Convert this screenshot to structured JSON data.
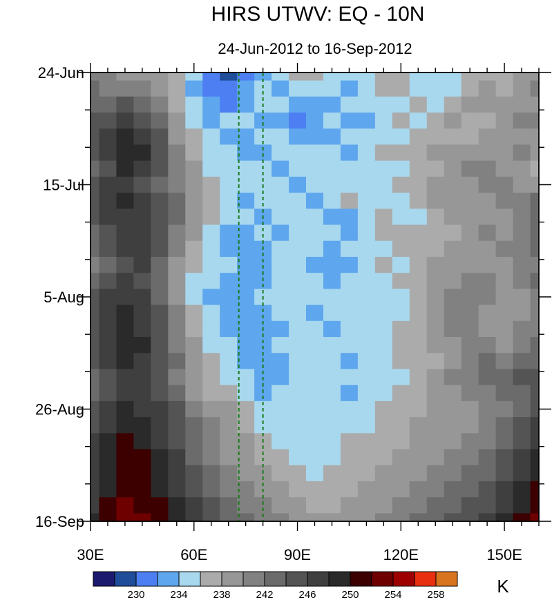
{
  "chart_data": {
    "type": "heatmap",
    "title": "HIRS UTWV: EQ - 10N",
    "subtitle": "24-Jun-2012 to 16-Sep-2012",
    "xlabel": "",
    "ylabel": "",
    "x_range": [
      30,
      160
    ],
    "x_ticks": [
      {
        "value": 30,
        "label": "30E"
      },
      {
        "value": 60,
        "label": "60E"
      },
      {
        "value": 90,
        "label": "90E"
      },
      {
        "value": 120,
        "label": "120E"
      },
      {
        "value": 150,
        "label": "150E"
      }
    ],
    "y_range_days": [
      0,
      84
    ],
    "y_ticks": [
      {
        "value": 0,
        "label": "24-Jun"
      },
      {
        "value": 21,
        "label": "15-Jul"
      },
      {
        "value": 42,
        "label": "5-Aug"
      },
      {
        "value": 63,
        "label": "26-Aug"
      },
      {
        "value": 84,
        "label": "16-Sep"
      }
    ],
    "reference_lines_lon": [
      73,
      80
    ],
    "reference_line_color": "#1a7a1a",
    "colorbar": {
      "unit": "K",
      "boundary_labels": [
        "230",
        "234",
        "238",
        "242",
        "246",
        "250",
        "254",
        "258"
      ],
      "colors": [
        "#1c1a6e",
        "#1f4d9a",
        "#4d7ff2",
        "#5ea6ee",
        "#a8d8ee",
        "#ababab",
        "#979797",
        "#818181",
        "#6b6b6b",
        "#545454",
        "#3f3f3f",
        "#2a2a2a",
        "#3d0000",
        "#6e0000",
        "#9e0000",
        "#e83010",
        "#d9741e"
      ]
    },
    "field_description_levels": "brightness temperature (K), 228-260",
    "sample_grid": {
      "lon_step": 5,
      "day_step": 3,
      "note": "approximate values estimated from contour colors; rows = days 0..84 step 3, cols = 30E..160E step 5",
      "rows": [
        [
          243,
          242,
          241,
          241,
          240,
          238,
          236,
          233,
          231,
          232,
          235,
          237,
          239,
          238,
          237,
          236,
          236,
          238,
          238,
          237,
          236,
          237,
          238,
          238,
          239,
          240,
          240
        ],
        [
          244,
          243,
          242,
          243,
          241,
          239,
          235,
          233,
          232,
          234,
          236,
          235,
          236,
          237,
          236,
          235,
          236,
          238,
          238,
          237,
          236,
          237,
          239,
          240,
          239,
          241,
          242
        ],
        [
          245,
          244,
          246,
          245,
          243,
          239,
          236,
          234,
          233,
          235,
          236,
          236,
          235,
          234,
          234,
          236,
          237,
          236,
          236,
          238,
          237,
          239,
          240,
          240,
          241,
          240,
          241
        ],
        [
          246,
          247,
          248,
          247,
          244,
          240,
          236,
          235,
          236,
          236,
          235,
          234,
          233,
          235,
          236,
          235,
          235,
          237,
          238,
          237,
          238,
          240,
          239,
          239,
          240,
          242,
          243
        ],
        [
          247,
          249,
          250,
          249,
          246,
          241,
          238,
          236,
          235,
          234,
          236,
          236,
          235,
          234,
          235,
          236,
          237,
          236,
          237,
          239,
          239,
          238,
          239,
          241,
          241,
          240,
          240
        ],
        [
          246,
          248,
          251,
          250,
          247,
          242,
          239,
          237,
          236,
          235,
          234,
          236,
          237,
          236,
          236,
          235,
          236,
          238,
          238,
          239,
          240,
          240,
          241,
          240,
          241,
          242,
          241
        ],
        [
          245,
          247,
          250,
          249,
          246,
          243,
          240,
          237,
          236,
          236,
          236,
          235,
          236,
          237,
          236,
          236,
          237,
          236,
          237,
          238,
          239,
          241,
          242,
          242,
          241,
          240,
          239
        ],
        [
          246,
          248,
          249,
          247,
          245,
          242,
          240,
          238,
          236,
          236,
          237,
          236,
          235,
          236,
          237,
          237,
          236,
          236,
          238,
          239,
          240,
          240,
          241,
          243,
          242,
          241,
          240
        ],
        [
          247,
          249,
          250,
          248,
          246,
          244,
          241,
          239,
          237,
          235,
          236,
          237,
          236,
          235,
          236,
          238,
          237,
          236,
          237,
          238,
          240,
          241,
          240,
          241,
          242,
          243,
          244
        ],
        [
          246,
          248,
          249,
          249,
          247,
          244,
          241,
          238,
          236,
          236,
          235,
          236,
          237,
          236,
          234,
          235,
          237,
          238,
          237,
          237,
          239,
          240,
          241,
          240,
          241,
          243,
          245
        ],
        [
          245,
          247,
          248,
          248,
          246,
          243,
          240,
          237,
          235,
          235,
          236,
          235,
          236,
          237,
          236,
          235,
          236,
          238,
          239,
          238,
          238,
          239,
          241,
          242,
          241,
          242,
          244
        ],
        [
          244,
          246,
          249,
          249,
          246,
          242,
          239,
          236,
          234,
          234,
          235,
          237,
          236,
          236,
          235,
          236,
          237,
          237,
          238,
          239,
          239,
          240,
          240,
          241,
          242,
          243,
          245
        ],
        [
          243,
          245,
          247,
          248,
          245,
          241,
          238,
          236,
          236,
          235,
          234,
          236,
          237,
          235,
          234,
          235,
          237,
          238,
          237,
          239,
          240,
          241,
          241,
          240,
          241,
          242,
          243
        ],
        [
          245,
          246,
          248,
          247,
          244,
          240,
          237,
          236,
          235,
          235,
          235,
          236,
          237,
          236,
          235,
          236,
          236,
          237,
          238,
          238,
          240,
          241,
          242,
          242,
          241,
          243,
          244
        ],
        [
          246,
          248,
          249,
          248,
          245,
          241,
          237,
          235,
          234,
          234,
          236,
          237,
          236,
          236,
          236,
          237,
          236,
          236,
          237,
          239,
          241,
          242,
          243,
          242,
          240,
          241,
          243
        ],
        [
          247,
          249,
          250,
          248,
          246,
          242,
          238,
          236,
          235,
          234,
          235,
          236,
          236,
          235,
          236,
          237,
          237,
          236,
          237,
          238,
          240,
          242,
          243,
          241,
          240,
          241,
          242
        ],
        [
          246,
          248,
          250,
          249,
          246,
          243,
          239,
          236,
          235,
          235,
          234,
          235,
          236,
          236,
          235,
          236,
          237,
          237,
          238,
          239,
          241,
          242,
          242,
          241,
          241,
          242,
          243
        ],
        [
          247,
          249,
          251,
          250,
          247,
          243,
          240,
          237,
          236,
          235,
          235,
          236,
          237,
          236,
          236,
          236,
          236,
          237,
          238,
          239,
          240,
          241,
          242,
          242,
          241,
          242,
          244
        ],
        [
          246,
          248,
          250,
          249,
          247,
          244,
          241,
          238,
          236,
          235,
          234,
          235,
          236,
          236,
          236,
          235,
          236,
          237,
          238,
          238,
          239,
          241,
          243,
          244,
          243,
          244,
          245
        ],
        [
          245,
          247,
          249,
          248,
          246,
          243,
          240,
          238,
          237,
          236,
          235,
          235,
          236,
          237,
          236,
          236,
          236,
          237,
          237,
          238,
          240,
          242,
          243,
          244,
          245,
          246,
          247
        ],
        [
          245,
          247,
          249,
          248,
          247,
          244,
          241,
          239,
          238,
          236,
          235,
          236,
          237,
          236,
          236,
          235,
          236,
          237,
          238,
          239,
          240,
          241,
          242,
          243,
          244,
          245,
          246
        ],
        [
          246,
          248,
          250,
          249,
          248,
          246,
          243,
          241,
          240,
          238,
          236,
          236,
          237,
          237,
          236,
          236,
          237,
          238,
          238,
          239,
          240,
          240,
          241,
          242,
          243,
          245,
          247
        ],
        [
          247,
          249,
          251,
          250,
          249,
          247,
          244,
          242,
          241,
          239,
          237,
          236,
          236,
          237,
          237,
          237,
          237,
          238,
          239,
          240,
          240,
          241,
          241,
          242,
          244,
          246,
          248
        ],
        [
          248,
          250,
          252,
          251,
          249,
          247,
          245,
          242,
          241,
          240,
          238,
          237,
          236,
          236,
          237,
          238,
          238,
          238,
          239,
          240,
          241,
          241,
          242,
          243,
          245,
          247,
          249
        ],
        [
          248,
          251,
          253,
          252,
          250,
          248,
          245,
          243,
          241,
          240,
          239,
          238,
          237,
          237,
          237,
          238,
          239,
          239,
          240,
          241,
          241,
          242,
          243,
          244,
          246,
          248,
          250
        ],
        [
          248,
          250,
          252,
          252,
          250,
          248,
          246,
          244,
          242,
          241,
          240,
          239,
          238,
          237,
          238,
          239,
          239,
          240,
          241,
          241,
          242,
          243,
          244,
          245,
          247,
          249,
          251
        ],
        [
          249,
          251,
          253,
          253,
          251,
          249,
          247,
          245,
          243,
          242,
          241,
          240,
          239,
          238,
          238,
          239,
          240,
          241,
          241,
          242,
          243,
          244,
          245,
          246,
          248,
          250,
          252
        ],
        [
          249,
          252,
          254,
          253,
          252,
          250,
          248,
          246,
          244,
          243,
          242,
          241,
          240,
          239,
          239,
          240,
          241,
          241,
          242,
          243,
          244,
          245,
          246,
          247,
          249,
          251,
          253
        ],
        [
          250,
          253,
          255,
          254,
          252,
          250,
          248,
          246,
          245,
          244,
          243,
          242,
          241,
          240,
          240,
          241,
          241,
          242,
          243,
          244,
          245,
          246,
          247,
          248,
          250,
          252,
          254
        ]
      ]
    }
  }
}
